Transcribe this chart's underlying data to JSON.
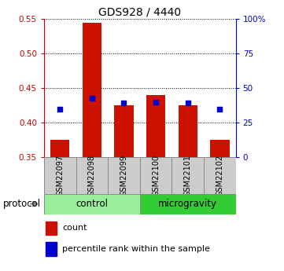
{
  "title": "GDS928 / 4440",
  "samples": [
    "GSM22097",
    "GSM22098",
    "GSM22099",
    "GSM22100",
    "GSM22101",
    "GSM22102"
  ],
  "red_bar_bottom": 0.35,
  "red_bar_tops": [
    0.375,
    0.545,
    0.425,
    0.44,
    0.425,
    0.375
  ],
  "blue_square_y": [
    0.42,
    0.435,
    0.428,
    0.43,
    0.428,
    0.42
  ],
  "ylim": [
    0.35,
    0.55
  ],
  "yticks_left": [
    0.35,
    0.4,
    0.45,
    0.5,
    0.55
  ],
  "yticks_right": [
    0,
    25,
    50,
    75,
    100
  ],
  "right_ylim": [
    0,
    100
  ],
  "left_color": "#cc0000",
  "right_color": "#0000cc",
  "bar_color": "#cc1100",
  "blue_color": "#0000cc",
  "control_color": "#99ee99",
  "microgravity_color": "#33cc33",
  "sample_box_color": "#cccccc",
  "protocol_label": "protocol",
  "control_label": "control",
  "microgravity_label": "microgravity",
  "legend_count": "count",
  "legend_percentile": "percentile rank within the sample",
  "bar_width": 0.6
}
